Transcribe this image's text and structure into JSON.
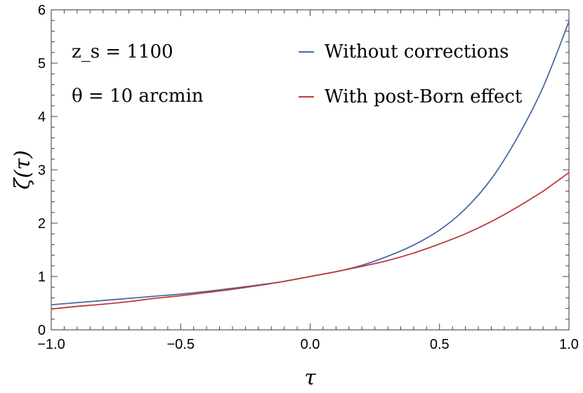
{
  "chart_data": {
    "type": "line",
    "xlabel": "τ",
    "ylabel": "ζ(τ)",
    "xlim": [
      -1.0,
      1.0
    ],
    "ylim": [
      0,
      6
    ],
    "x_ticks": [
      -1.0,
      -0.5,
      0.0,
      0.5,
      1.0
    ],
    "x_tick_labels": [
      "−1.0",
      "−0.5",
      "0.0",
      "0.5",
      "1.0"
    ],
    "y_ticks": [
      0,
      1,
      2,
      3,
      4,
      5,
      6
    ],
    "y_tick_labels": [
      "0",
      "1",
      "2",
      "3",
      "4",
      "5",
      "6"
    ],
    "grid": false,
    "legend_position": "top-right",
    "annotations": [
      "z_s = 1100",
      "θ = 10 arcmin"
    ],
    "x": [
      -1.0,
      -0.9,
      -0.8,
      -0.7,
      -0.6,
      -0.5,
      -0.4,
      -0.3,
      -0.2,
      -0.1,
      0.0,
      0.1,
      0.2,
      0.3,
      0.4,
      0.5,
      0.6,
      0.7,
      0.8,
      0.9,
      1.0
    ],
    "series": [
      {
        "name": "Without corrections",
        "color": "#4a6aa5",
        "values": [
          0.47,
          0.51,
          0.55,
          0.59,
          0.63,
          0.67,
          0.72,
          0.78,
          0.84,
          0.91,
          1.0,
          1.09,
          1.21,
          1.38,
          1.59,
          1.87,
          2.27,
          2.83,
          3.6,
          4.55,
          5.78
        ]
      },
      {
        "name": "With post-Born effect",
        "color": "#c0393b",
        "values": [
          0.39,
          0.44,
          0.48,
          0.53,
          0.59,
          0.64,
          0.7,
          0.76,
          0.83,
          0.91,
          1.0,
          1.09,
          1.19,
          1.3,
          1.44,
          1.61,
          1.8,
          2.03,
          2.3,
          2.6,
          2.95
        ]
      }
    ]
  }
}
